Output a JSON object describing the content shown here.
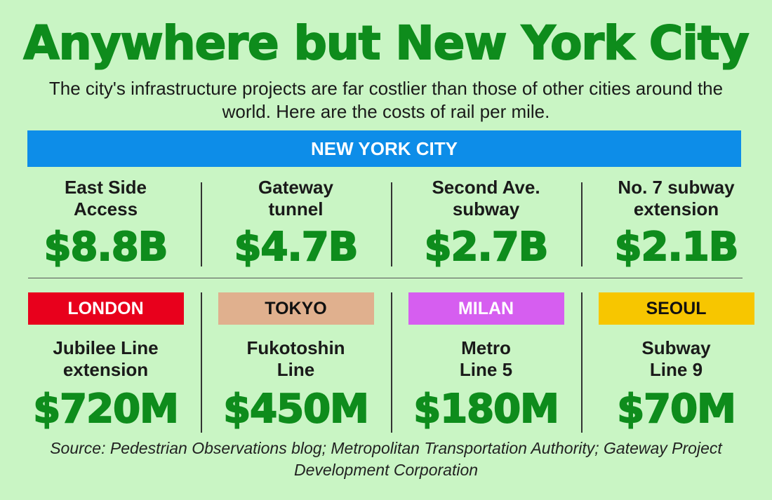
{
  "title": "Anywhere but New York City",
  "subtitle": "The city's infrastructure projects are far costlier than those of other cities around the world. Here are the costs of rail per mile.",
  "nyc": {
    "label": "NEW YORK CITY",
    "color": "#0d8de8",
    "projects": [
      {
        "name": "East Side\nAccess",
        "cost": "$8.8B"
      },
      {
        "name": "Gateway\ntunnel",
        "cost": "$4.7B"
      },
      {
        "name": "Second Ave.\nsubway",
        "cost": "$2.7B"
      },
      {
        "name": "No. 7 subway\nextension",
        "cost": "$2.1B"
      }
    ]
  },
  "cities": [
    {
      "label": "LONDON",
      "color": "#e8001c",
      "text_color": "#ffffff",
      "project": "Jubilee Line\nextension",
      "cost": "$720M"
    },
    {
      "label": "TOKYO",
      "color": "#e0b08e",
      "text_color": "#111111",
      "project": "Fukotoshin\nLine",
      "cost": "$450M"
    },
    {
      "label": "MILAN",
      "color": "#d65ef0",
      "text_color": "#ffffff",
      "project": "Metro\nLine 5",
      "cost": "$180M"
    },
    {
      "label": "SEOUL",
      "color": "#f7c600",
      "text_color": "#111111",
      "project": "Subway\nLine 9",
      "cost": "$70M"
    }
  ],
  "source": "Source: Pedestrian Observations blog; Metropolitan Transportation Authority; Gateway Project Development Corporation",
  "colors": {
    "background": "#c9f5c4",
    "accent_green": "#0e8c1c"
  }
}
